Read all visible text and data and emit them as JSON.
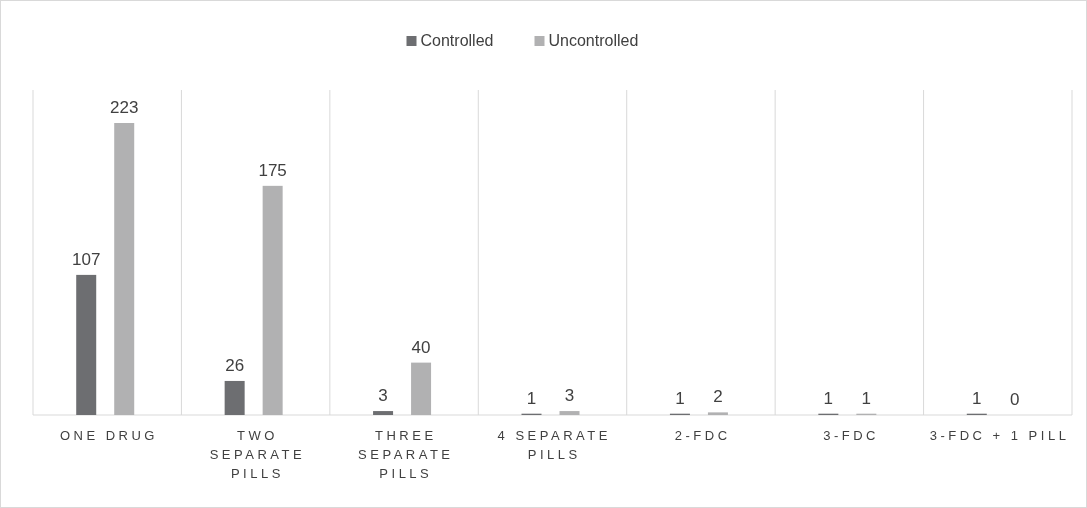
{
  "chart_data": {
    "type": "bar",
    "categories": [
      "ONE DRUG",
      "TWO\nSEPARATE\nPILLS",
      "THREE\nSEPARATE\nPILLS",
      "4 SEPARATE\nPILLS",
      "2-FDC",
      "3-FDC",
      "3-FDC + 1 PILL"
    ],
    "series": [
      {
        "name": "Controlled",
        "color": "#6d6e71",
        "values": [
          107,
          26,
          3,
          1,
          1,
          1,
          1
        ]
      },
      {
        "name": "Uncontrolled",
        "color": "#b1b1b2",
        "values": [
          223,
          175,
          40,
          3,
          2,
          1,
          0
        ]
      }
    ],
    "data_labels": true,
    "grid": "x",
    "legend": "top"
  }
}
